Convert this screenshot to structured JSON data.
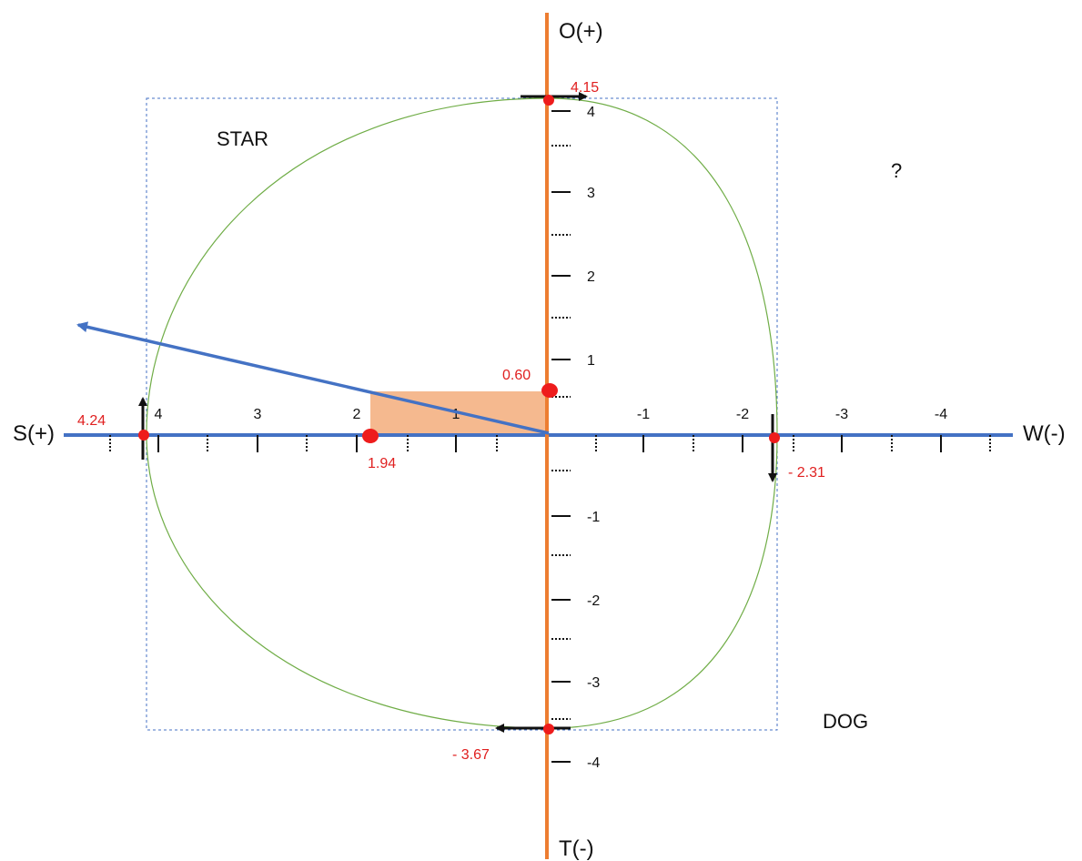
{
  "axes": {
    "x_left_title": "S(+)",
    "x_right_title": "W(-)",
    "y_top_title": "O(+)",
    "y_bottom_title": "T(-)",
    "x_tick_labels": [
      "4",
      "3",
      "2",
      "1",
      "-1",
      "-2",
      "-3",
      "-4"
    ],
    "y_tick_labels": [
      "4",
      "3",
      "2",
      "1",
      "-1",
      "-2",
      "-3",
      "-4"
    ]
  },
  "quadrants": {
    "top_left": "STAR",
    "top_right": "?",
    "bottom_right": "DOG"
  },
  "points": {
    "s_value": "4.24",
    "w_value": "- 2.31",
    "o_value": "4.15",
    "t_value": "- 3.67",
    "x_center": "1.94",
    "y_center": "0.60"
  },
  "colors": {
    "x_axis": "#4472c4",
    "y_axis": "#ed7d31",
    "shaded_rect": "#f4b183",
    "curve": "#70ad47",
    "points": "#ee1c1c",
    "point_labels": "#e02020",
    "vector": "#4472c4",
    "dashed_box": "#4472c4"
  }
}
